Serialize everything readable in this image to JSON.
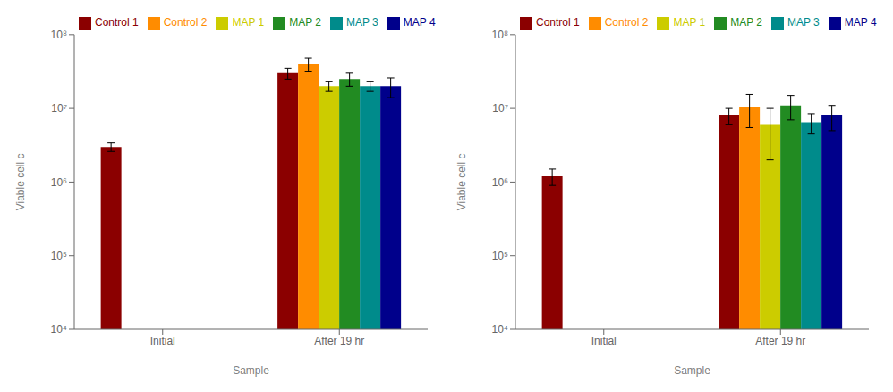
{
  "chart_data": [
    {
      "type": "bar",
      "xlabel": "Sample",
      "ylabel": "Viable cell c",
      "categories": [
        "Initial",
        "After 19 hr"
      ],
      "log": "y",
      "ylim": [
        10000,
        100000000
      ],
      "yticks": [
        {
          "value": 10000,
          "label": "10⁴"
        },
        {
          "value": 100000,
          "label": "10⁵"
        },
        {
          "value": 1000000,
          "label": "10⁶"
        },
        {
          "value": 10000000,
          "label": "10⁷"
        },
        {
          "value": 100000000,
          "label": "10⁸"
        }
      ],
      "grid": false,
      "legend": "upper left",
      "series": [
        {
          "name": "Control 1",
          "color": "#8B0000",
          "values": [
            3000000,
            30000000
          ],
          "errors": [
            400000,
            5000000
          ]
        },
        {
          "name": "Control 2",
          "color": "#FF8C00",
          "values": [
            null,
            40000000
          ],
          "errors": [
            null,
            8000000
          ]
        },
        {
          "name": "MAP 1",
          "color": "#CCCC00",
          "values": [
            null,
            20000000
          ],
          "errors": [
            null,
            3000000
          ]
        },
        {
          "name": "MAP 2",
          "color": "#228B22",
          "values": [
            null,
            25000000
          ],
          "errors": [
            null,
            5000000
          ]
        },
        {
          "name": "MAP 3",
          "color": "#008B8B",
          "values": [
            null,
            20000000
          ],
          "errors": [
            null,
            3000000
          ]
        },
        {
          "name": "MAP 4",
          "color": "#00008B",
          "values": [
            null,
            20000000
          ],
          "errors": [
            null,
            6000000
          ]
        }
      ]
    },
    {
      "type": "bar",
      "xlabel": "Sample",
      "ylabel": "Viable cell c",
      "categories": [
        "Initial",
        "After 19 hr"
      ],
      "log": "y",
      "ylim": [
        10000,
        100000000
      ],
      "yticks": [
        {
          "value": 10000,
          "label": "10⁴"
        },
        {
          "value": 100000,
          "label": "10⁵"
        },
        {
          "value": 1000000,
          "label": "10⁶"
        },
        {
          "value": 10000000,
          "label": "10⁷"
        },
        {
          "value": 100000000,
          "label": "10⁸"
        }
      ],
      "grid": false,
      "legend": "upper left",
      "series": [
        {
          "name": "Control 1",
          "color": "#8B0000",
          "values": [
            1200000,
            8000000
          ],
          "errors": [
            300000,
            2000000
          ]
        },
        {
          "name": "Control 2",
          "color": "#FF8C00",
          "values": [
            null,
            10500000
          ],
          "errors": [
            null,
            5000000
          ]
        },
        {
          "name": "MAP 1",
          "color": "#CCCC00",
          "values": [
            null,
            6000000
          ],
          "errors": [
            null,
            4000000
          ]
        },
        {
          "name": "MAP 2",
          "color": "#228B22",
          "values": [
            null,
            11000000
          ],
          "errors": [
            null,
            4000000
          ]
        },
        {
          "name": "MAP 3",
          "color": "#008B8B",
          "values": [
            null,
            6500000
          ],
          "errors": [
            null,
            2000000
          ]
        },
        {
          "name": "MAP 4",
          "color": "#00008B",
          "values": [
            null,
            8000000
          ],
          "errors": [
            null,
            3000000
          ]
        }
      ]
    }
  ]
}
